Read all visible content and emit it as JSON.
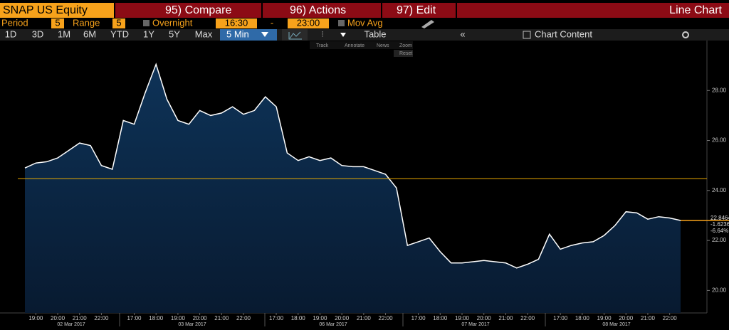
{
  "header": {
    "ticker": "SNAP US Equity",
    "buttons": [
      "95) Compare",
      "96) Actions",
      "97) Edit"
    ],
    "view": "Line Chart"
  },
  "settings": {
    "period_label": "Period",
    "period": "5",
    "range_label": "Range",
    "range": "5",
    "overnight": "Overnight",
    "start": "16:30",
    "dash": "-",
    "end": "23:00",
    "mov_avg": "Mov Avg"
  },
  "periods": [
    "1D",
    "3D",
    "1M",
    "6M",
    "YTD",
    "1Y",
    "5Y",
    "Max"
  ],
  "frequency": "5 Min",
  "tools": {
    "table": "Table",
    "content": "Chart Content",
    "track": "Track",
    "annotate": "Annotate",
    "news": "News",
    "zoom": "Zoom",
    "reset": "Reset"
  },
  "chart_data": {
    "type": "area",
    "color": "#ffffff",
    "categories": [
      null,
      "19:00",
      null,
      "20:00",
      null,
      "21:00",
      null,
      "22:00",
      null,
      null,
      "17:00",
      null,
      "18:00",
      null,
      "19:00",
      null,
      "20:00",
      null,
      "21:00",
      null,
      "22:00",
      null,
      null,
      "17:00",
      null,
      "18:00",
      null,
      "19:00",
      null,
      "20:00",
      null,
      "21:00",
      null,
      "22:00",
      null,
      null,
      "17:00",
      null,
      "18:00",
      null,
      "19:00",
      null,
      "20:00",
      null,
      "21:00",
      null,
      "22:00",
      null,
      null,
      "17:00",
      null,
      "18:00",
      null,
      "19:00",
      null,
      "20:00",
      null,
      "21:00",
      null,
      "22:00",
      null
    ],
    "values": [
      24.9,
      25.1,
      25.15,
      25.3,
      25.6,
      25.9,
      25.8,
      25.0,
      24.85,
      26.8,
      26.65,
      27.9,
      29.05,
      27.65,
      26.8,
      26.65,
      27.2,
      27.0,
      27.1,
      27.35,
      27.05,
      27.2,
      27.75,
      27.35,
      25.5,
      25.2,
      25.35,
      25.2,
      25.3,
      25.0,
      24.95,
      24.95,
      24.8,
      24.65,
      24.1,
      21.8,
      21.95,
      22.1,
      21.55,
      21.1,
      21.1,
      21.15,
      21.2,
      21.15,
      21.1,
      20.9,
      21.05,
      21.25,
      22.25,
      21.65,
      21.8,
      21.9,
      21.95,
      22.2,
      22.6,
      23.15,
      23.1,
      22.85,
      22.95,
      22.9,
      22.8
    ],
    "dates": [
      "02 Mar 2017",
      "03 Mar 2017",
      "06 Mar 2017",
      "07 Mar 2017",
      "08 Mar 2017"
    ],
    "ylim": [
      19.1,
      30
    ],
    "yticks": [
      {
        "value": 20,
        "label": "20.00"
      },
      {
        "value": 22,
        "label": "22.00"
      },
      {
        "value": 24,
        "label": "24.00"
      },
      {
        "value": 26,
        "label": "26.00"
      },
      {
        "value": 28,
        "label": "28.00"
      }
    ],
    "reference_line": 24.47,
    "reference_color": "#e8a800",
    "last_labels": [
      "22.8464",
      "-1.6236",
      "-6.64%"
    ]
  }
}
